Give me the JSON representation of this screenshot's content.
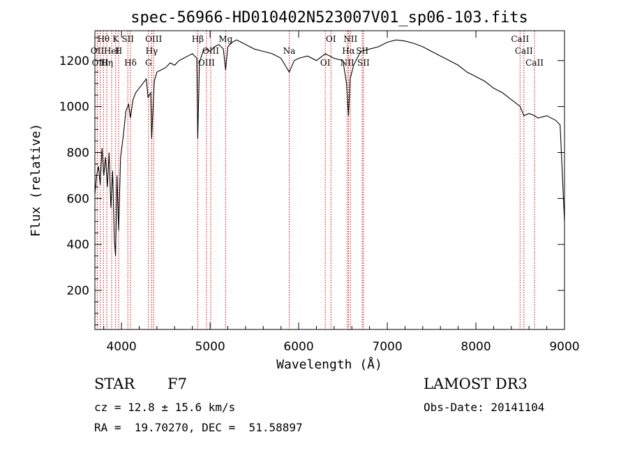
{
  "chart_data": {
    "type": "line",
    "title": "spec-56966-HD010402N523007V01_sp06-103.fits",
    "xlabel": "Wavelength (Å)",
    "ylabel": "Flux (relative)",
    "xlim": [
      3700,
      9000
    ],
    "ylim": [
      30,
      1330
    ],
    "xticks": [
      4000,
      5000,
      6000,
      7000,
      8000,
      9000
    ],
    "yticks": [
      200,
      400,
      600,
      800,
      1000,
      1200
    ],
    "series": [
      {
        "name": "flux",
        "x": [
          3700,
          3720,
          3740,
          3760,
          3780,
          3800,
          3820,
          3840,
          3860,
          3880,
          3900,
          3920,
          3933,
          3950,
          3968,
          3990,
          4020,
          4050,
          4080,
          4101,
          4130,
          4160,
          4200,
          4240,
          4280,
          4300,
          4330,
          4340,
          4370,
          4400,
          4450,
          4500,
          4550,
          4600,
          4650,
          4700,
          4750,
          4800,
          4850,
          4861,
          4880,
          4920,
          4960,
          5000,
          5050,
          5100,
          5150,
          5175,
          5200,
          5250,
          5300,
          5350,
          5400,
          5450,
          5500,
          5600,
          5700,
          5800,
          5893,
          5950,
          6000,
          6100,
          6200,
          6300,
          6400,
          6500,
          6540,
          6563,
          6580,
          6620,
          6700,
          6800,
          6900,
          7000,
          7100,
          7200,
          7300,
          7400,
          7500,
          7600,
          7700,
          7800,
          7900,
          8000,
          8100,
          8200,
          8300,
          8400,
          8500,
          8542,
          8600,
          8662,
          8700,
          8800,
          8900,
          8950,
          9000
        ],
        "values": [
          620,
          700,
          740,
          660,
          820,
          700,
          780,
          650,
          800,
          560,
          720,
          420,
          350,
          700,
          460,
          780,
          870,
          980,
          1010,
          950,
          1030,
          1060,
          1080,
          1100,
          1120,
          1040,
          1060,
          860,
          1110,
          1150,
          1160,
          1170,
          1190,
          1180,
          1200,
          1210,
          1220,
          1230,
          1210,
          860,
          1190,
          1240,
          1250,
          1240,
          1260,
          1270,
          1250,
          1160,
          1260,
          1280,
          1290,
          1280,
          1270,
          1260,
          1250,
          1240,
          1230,
          1210,
          1150,
          1200,
          1210,
          1220,
          1200,
          1230,
          1210,
          1200,
          1100,
          960,
          1120,
          1180,
          1240,
          1250,
          1260,
          1280,
          1290,
          1285,
          1275,
          1260,
          1240,
          1220,
          1200,
          1180,
          1150,
          1130,
          1110,
          1080,
          1060,
          1030,
          1000,
          960,
          970,
          960,
          950,
          960,
          940,
          920,
          500
        ]
      }
    ],
    "line_markers": [
      {
        "label": "Hθ",
        "x": 3797
      },
      {
        "label": "OII",
        "x": 3727
      },
      {
        "label": "OIII",
        "x": 3760
      },
      {
        "label": "K",
        "x": 3934
      },
      {
        "label": "HeI",
        "x": 3889
      },
      {
        "label": "Hη",
        "x": 3835
      },
      {
        "label": "SII",
        "x": 4072
      },
      {
        "label": "H",
        "x": 3968
      },
      {
        "label": "Hδ",
        "x": 4102
      },
      {
        "label": "OIII",
        "x": 4363
      },
      {
        "label": "Hγ",
        "x": 4341
      },
      {
        "label": "G",
        "x": 4305
      },
      {
        "label": "Hβ",
        "x": 4861
      },
      {
        "label": "OIII",
        "x": 5007
      },
      {
        "label": "OIII",
        "x": 4959
      },
      {
        "label": "Mg",
        "x": 5175
      },
      {
        "label": "Na",
        "x": 5893
      },
      {
        "label": "OI",
        "x": 6300
      },
      {
        "label": "OI",
        "x": 6364
      },
      {
        "label": "Hα",
        "x": 6563
      },
      {
        "label": "NII",
        "x": 6548
      },
      {
        "label": "NII",
        "x": 6584
      },
      {
        "label": "SII",
        "x": 6717
      },
      {
        "label": "SII",
        "x": 6731
      },
      {
        "label": "CaII",
        "x": 8498
      },
      {
        "label": "CaII",
        "x": 8542
      },
      {
        "label": "CaII",
        "x": 8662
      }
    ]
  },
  "info": {
    "object_class": "STAR",
    "subclass": "F7",
    "survey": "LAMOST DR3",
    "cz": "cz = 12.8 ± 15.6 km/s",
    "obs_date": "Obs-Date: 20141104",
    "radec": "RA =  19.70270, DEC =  51.58897"
  },
  "colors": {
    "spectrum": "#000000",
    "marker": "#cc0000"
  }
}
